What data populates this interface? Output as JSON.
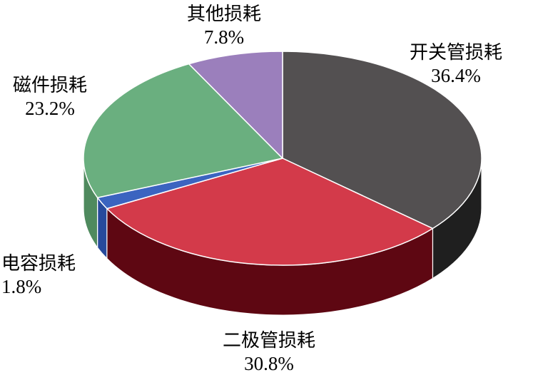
{
  "chart_data": {
    "type": "pie",
    "style": "3d",
    "slices": [
      {
        "label": "开关管损耗",
        "pct_label": "36.4%",
        "value": 36.4,
        "color": "#535051",
        "side_color": "#1f1f1f"
      },
      {
        "label": "二极管损耗",
        "pct_label": "30.8%",
        "value": 30.8,
        "color": "#d33a4a",
        "side_color": "#5e0712"
      },
      {
        "label": "电容损耗",
        "pct_label": "1.8%",
        "value": 1.8,
        "color": "#3b64c0",
        "side_color": "#274a9c"
      },
      {
        "label": "磁件损耗",
        "pct_label": "23.2%",
        "value": 23.2,
        "color": "#6aaf7f",
        "side_color": "#4f8a5e"
      },
      {
        "label": "其他损耗",
        "pct_label": "7.8%",
        "value": 7.8,
        "color": "#9b7fbc",
        "side_color": "#74598f"
      }
    ]
  }
}
